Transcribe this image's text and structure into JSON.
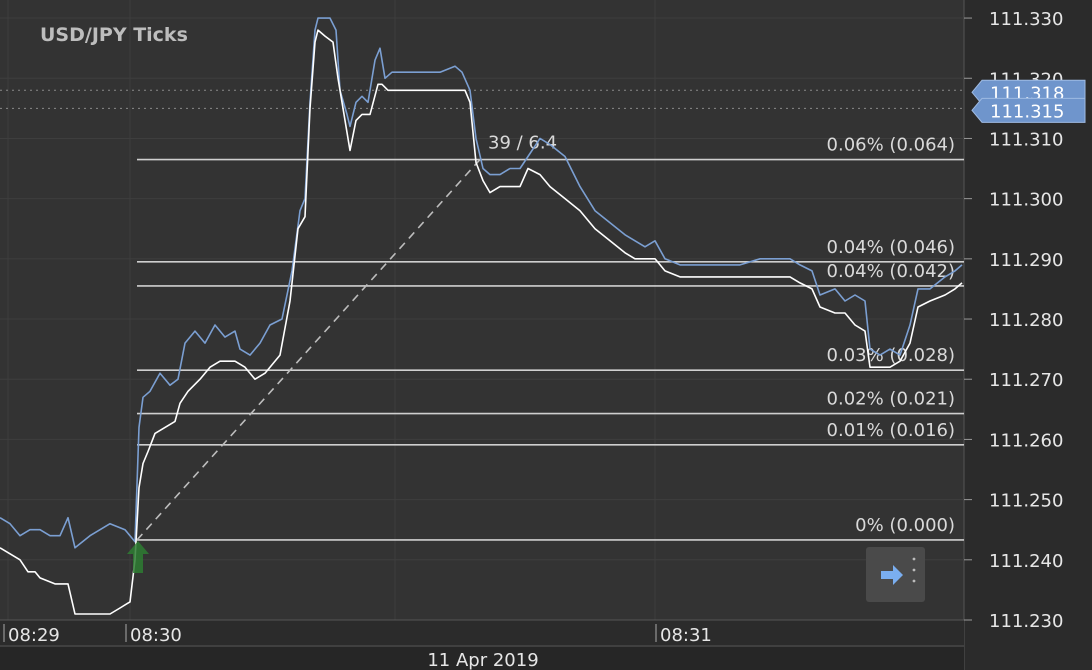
{
  "title": "USD/JPY  Ticks",
  "date_label": "11 Apr 2019",
  "colors": {
    "background": "#2b2b2b",
    "plot": "#333333",
    "grid": "#3e3e3e",
    "ask_line": "#7b9fd2",
    "bid_line": "#ffffff",
    "fib_line": "#cfcfcf",
    "badge": "#6f95cc",
    "arrow": "#2e7d32"
  },
  "icons": {
    "scroll_button": "arrow-right-icon",
    "buy_marker": "up-arrow-icon"
  },
  "chart_data": {
    "type": "line",
    "title": "USD/JPY  Ticks",
    "ylim": [
      111.23,
      111.333
    ],
    "y_ticks": [
      "111.330",
      "111.320",
      "111.310",
      "111.300",
      "111.290",
      "111.280",
      "111.270",
      "111.260",
      "111.250",
      "111.240",
      "111.230"
    ],
    "x_ticks": [
      "08:29",
      "08:30",
      "08:31"
    ],
    "current_prices": [
      "111.318",
      "111.315"
    ],
    "fib_levels": [
      {
        "label": "0% (0.000)",
        "value": 111.2433
      },
      {
        "label": "0.01% (0.016)",
        "value": 111.2591
      },
      {
        "label": "0.02% (0.021)",
        "value": 111.2643
      },
      {
        "label": "0.03% (0.028)",
        "value": 111.2715
      },
      {
        "label": "0.04% (0.042)",
        "value": 111.2855
      },
      {
        "label": "0.04% (0.046)",
        "value": 111.2895
      },
      {
        "label": "0.06% (0.064)",
        "value": 111.3065
      }
    ],
    "trend_label": "39 / 6.4",
    "series": [
      {
        "name": "ask",
        "points": [
          [
            0,
            111.247
          ],
          [
            10,
            111.246
          ],
          [
            20,
            111.244
          ],
          [
            30,
            111.245
          ],
          [
            40,
            111.245
          ],
          [
            50,
            111.244
          ],
          [
            60,
            111.244
          ],
          [
            68,
            111.247
          ],
          [
            75,
            111.242
          ],
          [
            90,
            111.244
          ],
          [
            110,
            111.246
          ],
          [
            125,
            111.245
          ],
          [
            135,
            111.243
          ],
          [
            139,
            111.262
          ],
          [
            143,
            111.267
          ],
          [
            150,
            111.268
          ],
          [
            160,
            111.271
          ],
          [
            170,
            111.269
          ],
          [
            178,
            111.27
          ],
          [
            185,
            111.276
          ],
          [
            195,
            111.278
          ],
          [
            205,
            111.276
          ],
          [
            215,
            111.279
          ],
          [
            225,
            111.277
          ],
          [
            235,
            111.278
          ],
          [
            240,
            111.275
          ],
          [
            250,
            111.274
          ],
          [
            260,
            111.276
          ],
          [
            270,
            111.279
          ],
          [
            282,
            111.28
          ],
          [
            292,
            111.288
          ],
          [
            300,
            111.298
          ],
          [
            305,
            111.3
          ],
          [
            310,
            111.316
          ],
          [
            315,
            111.328
          ],
          [
            318,
            111.33
          ],
          [
            322,
            111.33
          ],
          [
            330,
            111.33
          ],
          [
            336,
            111.328
          ],
          [
            340,
            111.318
          ],
          [
            347,
            111.314
          ],
          [
            350,
            111.312
          ],
          [
            356,
            111.316
          ],
          [
            362,
            111.317
          ],
          [
            368,
            111.316
          ],
          [
            375,
            111.323
          ],
          [
            380,
            111.325
          ],
          [
            385,
            111.32
          ],
          [
            392,
            111.321
          ],
          [
            400,
            111.321
          ],
          [
            420,
            111.321
          ],
          [
            440,
            111.321
          ],
          [
            455,
            111.322
          ],
          [
            462,
            111.321
          ],
          [
            470,
            111.318
          ],
          [
            476,
            111.31
          ],
          [
            483,
            111.305
          ],
          [
            490,
            111.304
          ],
          [
            500,
            111.304
          ],
          [
            510,
            111.305
          ],
          [
            520,
            111.305
          ],
          [
            528,
            111.307
          ],
          [
            540,
            111.31
          ],
          [
            550,
            111.309
          ],
          [
            565,
            111.307
          ],
          [
            580,
            111.302
          ],
          [
            595,
            111.298
          ],
          [
            610,
            111.296
          ],
          [
            625,
            111.294
          ],
          [
            635,
            111.293
          ],
          [
            645,
            111.292
          ],
          [
            655,
            111.293
          ],
          [
            665,
            111.29
          ],
          [
            680,
            111.289
          ],
          [
            700,
            111.289
          ],
          [
            720,
            111.289
          ],
          [
            740,
            111.289
          ],
          [
            760,
            111.29
          ],
          [
            780,
            111.29
          ],
          [
            790,
            111.29
          ],
          [
            800,
            111.289
          ],
          [
            812,
            111.288
          ],
          [
            820,
            111.284
          ],
          [
            835,
            111.285
          ],
          [
            845,
            111.283
          ],
          [
            855,
            111.284
          ],
          [
            865,
            111.283
          ],
          [
            870,
            111.275
          ],
          [
            880,
            111.274
          ],
          [
            890,
            111.275
          ],
          [
            900,
            111.274
          ],
          [
            910,
            111.279
          ],
          [
            918,
            111.285
          ],
          [
            930,
            111.285
          ],
          [
            945,
            111.287
          ],
          [
            955,
            111.288
          ],
          [
            962,
            111.289
          ]
        ]
      },
      {
        "name": "bid",
        "points": [
          [
            0,
            111.242
          ],
          [
            10,
            111.241
          ],
          [
            20,
            111.24
          ],
          [
            28,
            111.238
          ],
          [
            35,
            111.238
          ],
          [
            40,
            111.237
          ],
          [
            55,
            111.236
          ],
          [
            68,
            111.236
          ],
          [
            75,
            111.231
          ],
          [
            90,
            111.231
          ],
          [
            110,
            111.231
          ],
          [
            120,
            111.232
          ],
          [
            130,
            111.233
          ],
          [
            135,
            111.24
          ],
          [
            139,
            111.252
          ],
          [
            143,
            111.256
          ],
          [
            148,
            111.258
          ],
          [
            155,
            111.261
          ],
          [
            165,
            111.262
          ],
          [
            175,
            111.263
          ],
          [
            180,
            111.266
          ],
          [
            188,
            111.268
          ],
          [
            200,
            111.27
          ],
          [
            210,
            111.272
          ],
          [
            220,
            111.273
          ],
          [
            235,
            111.273
          ],
          [
            245,
            111.272
          ],
          [
            255,
            111.27
          ],
          [
            265,
            111.271
          ],
          [
            280,
            111.274
          ],
          [
            290,
            111.283
          ],
          [
            298,
            111.295
          ],
          [
            305,
            111.297
          ],
          [
            310,
            111.315
          ],
          [
            315,
            111.326
          ],
          [
            318,
            111.328
          ],
          [
            325,
            111.327
          ],
          [
            333,
            111.326
          ],
          [
            338,
            111.32
          ],
          [
            345,
            111.313
          ],
          [
            350,
            111.308
          ],
          [
            356,
            111.313
          ],
          [
            362,
            111.314
          ],
          [
            370,
            111.314
          ],
          [
            378,
            111.319
          ],
          [
            382,
            111.319
          ],
          [
            388,
            111.318
          ],
          [
            400,
            111.318
          ],
          [
            430,
            111.318
          ],
          [
            455,
            111.318
          ],
          [
            465,
            111.318
          ],
          [
            470,
            111.316
          ],
          [
            476,
            111.306
          ],
          [
            483,
            111.303
          ],
          [
            490,
            111.301
          ],
          [
            500,
            111.302
          ],
          [
            510,
            111.302
          ],
          [
            520,
            111.302
          ],
          [
            528,
            111.305
          ],
          [
            540,
            111.304
          ],
          [
            550,
            111.302
          ],
          [
            565,
            111.3
          ],
          [
            580,
            111.298
          ],
          [
            595,
            111.295
          ],
          [
            610,
            111.293
          ],
          [
            625,
            111.291
          ],
          [
            635,
            111.29
          ],
          [
            645,
            111.29
          ],
          [
            655,
            111.29
          ],
          [
            665,
            111.288
          ],
          [
            680,
            111.287
          ],
          [
            700,
            111.287
          ],
          [
            720,
            111.287
          ],
          [
            740,
            111.287
          ],
          [
            760,
            111.287
          ],
          [
            775,
            111.287
          ],
          [
            790,
            111.287
          ],
          [
            800,
            111.286
          ],
          [
            812,
            111.285
          ],
          [
            820,
            111.282
          ],
          [
            835,
            111.281
          ],
          [
            845,
            111.281
          ],
          [
            855,
            111.279
          ],
          [
            865,
            111.278
          ],
          [
            870,
            111.272
          ],
          [
            880,
            111.272
          ],
          [
            890,
            111.272
          ],
          [
            900,
            111.273
          ],
          [
            910,
            111.276
          ],
          [
            918,
            111.282
          ],
          [
            930,
            111.283
          ],
          [
            945,
            111.284
          ],
          [
            955,
            111.285
          ],
          [
            962,
            111.286
          ]
        ]
      }
    ]
  }
}
